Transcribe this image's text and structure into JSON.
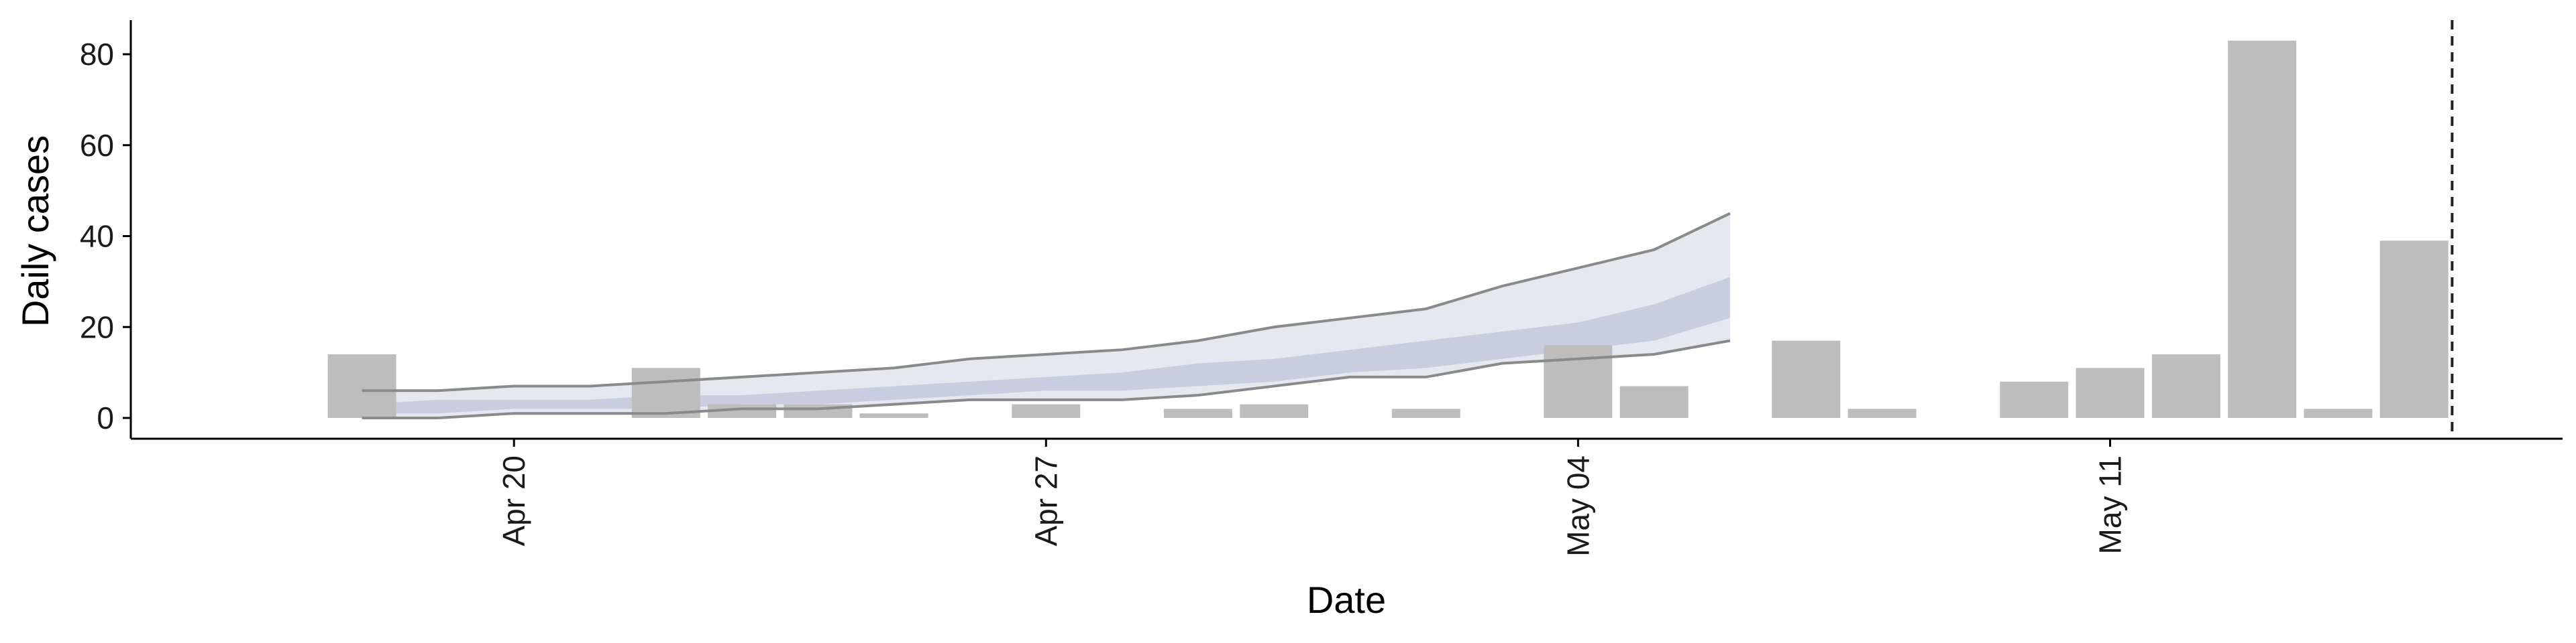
{
  "chart_data": {
    "type": "bar",
    "xlabel": "Date",
    "ylabel": "Daily cases",
    "ylim": [
      -4,
      88
    ],
    "yticks": [
      0,
      20,
      40,
      60,
      80
    ],
    "xticks": [
      {
        "date": "2020-04-20",
        "label": "Apr 20"
      },
      {
        "date": "2020-04-27",
        "label": "Apr 27"
      },
      {
        "date": "2020-05-04",
        "label": "May 04"
      },
      {
        "date": "2020-05-11",
        "label": "May 11"
      }
    ],
    "xrange": [
      "2020-04-16",
      "2020-05-16"
    ],
    "grid": false,
    "legend": "none",
    "bars": {
      "color": "#bdbdbd",
      "x": [
        "2020-04-18",
        "2020-04-19",
        "2020-04-22",
        "2020-04-23",
        "2020-04-24",
        "2020-04-25",
        "2020-04-27",
        "2020-04-29",
        "2020-04-30",
        "2020-05-02",
        "2020-05-04",
        "2020-05-05",
        "2020-05-07",
        "2020-05-08",
        "2020-05-10",
        "2020-05-11",
        "2020-05-12",
        "2020-05-13",
        "2020-05-14",
        "2020-05-15"
      ],
      "values": [
        14,
        0,
        11,
        3,
        3,
        1,
        3,
        2,
        3,
        2,
        16,
        7,
        17,
        2,
        8,
        11,
        14,
        83,
        2,
        39
      ]
    },
    "nowcast": {
      "x": [
        "2020-04-18",
        "2020-04-19",
        "2020-04-20",
        "2020-04-21",
        "2020-04-22",
        "2020-04-23",
        "2020-04-24",
        "2020-04-25",
        "2020-04-26",
        "2020-04-27",
        "2020-04-28",
        "2020-04-29",
        "2020-04-30",
        "2020-05-01",
        "2020-05-02",
        "2020-05-03",
        "2020-05-04",
        "2020-05-05",
        "2020-05-06"
      ],
      "outer_upper": [
        6,
        6,
        7,
        7,
        8,
        9,
        10,
        11,
        13,
        14,
        15,
        17,
        20,
        22,
        24,
        29,
        33,
        37,
        45
      ],
      "outer_lower": [
        0,
        0,
        1,
        1,
        1,
        2,
        2,
        3,
        4,
        4,
        4,
        5,
        7,
        9,
        9,
        12,
        13,
        14,
        17
      ],
      "inner_upper": [
        3,
        4,
        4,
        4,
        5,
        5,
        6,
        7,
        8,
        9,
        10,
        12,
        13,
        15,
        17,
        19,
        21,
        25,
        31
      ],
      "inner_lower": [
        1,
        1,
        2,
        2,
        2,
        3,
        3,
        4,
        5,
        6,
        6,
        7,
        8,
        10,
        11,
        13,
        15,
        17,
        22
      ],
      "outer_color": "#e6e8f0",
      "inner_color": "#c9cddf",
      "line_color": "#8a8a8a"
    },
    "vline": {
      "date": "2020-05-15",
      "style": "dashed",
      "color": "#222222"
    }
  }
}
